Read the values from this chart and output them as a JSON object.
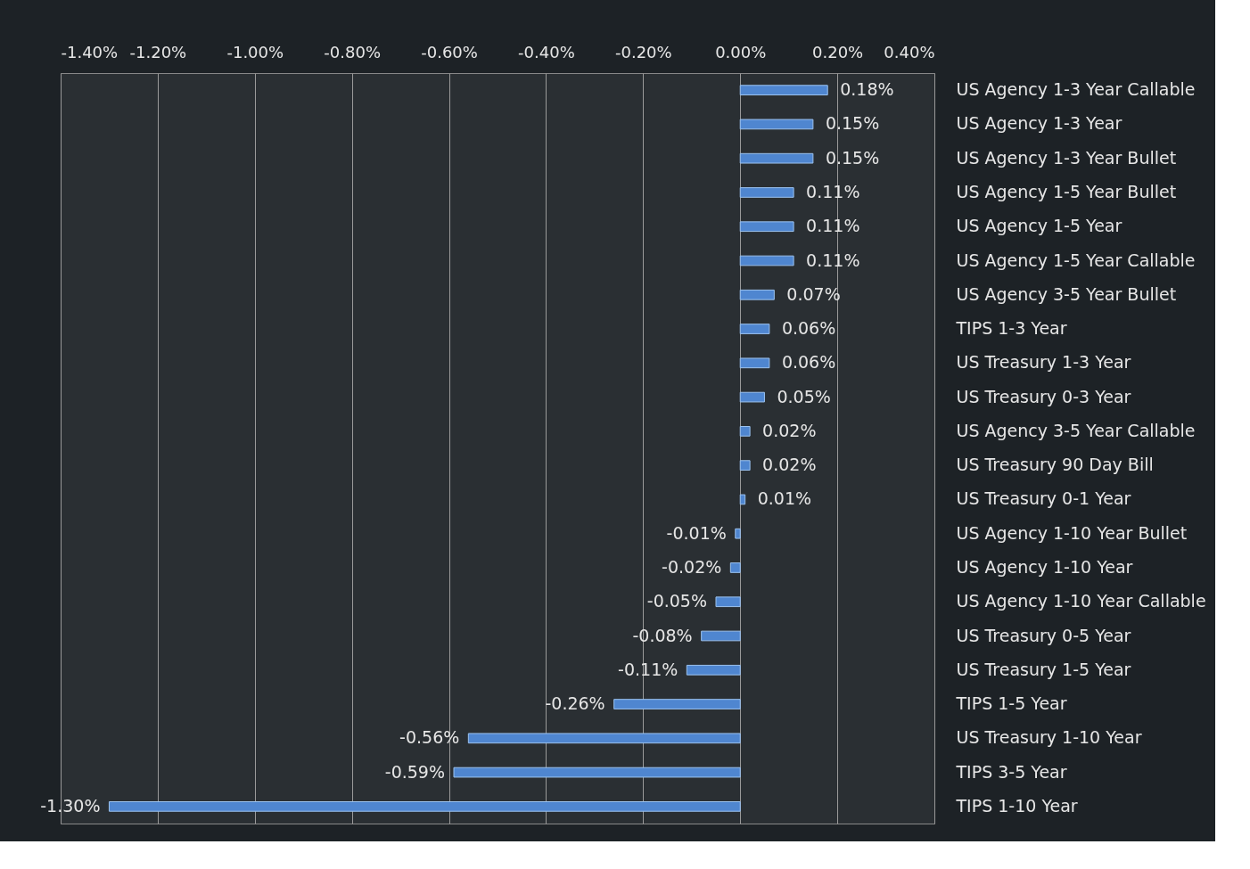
{
  "chart_data": {
    "type": "bar",
    "orientation": "horizontal",
    "categories": [
      "US Agency 1-3 Year Callable",
      "US Agency 1-3 Year",
      "US Agency 1-3 Year Bullet",
      "US Agency 1-5 Year Bullet",
      "US Agency 1-5 Year",
      "US Agency 1-5 Year Callable",
      "US Agency 3-5 Year Bullet",
      "TIPS 1-3 Year",
      "US Treasury 1-3 Year",
      "US Treasury 0-3 Year",
      "US Agency 3-5 Year Callable",
      "US Treasury 90 Day Bill",
      "US Treasury 0-1 Year",
      "US Agency 1-10 Year Bullet",
      "US Agency 1-10 Year",
      "US Agency 1-10 Year Callable",
      "US Treasury 0-5 Year",
      "US Treasury 1-5 Year",
      "TIPS 1-5 Year",
      "US Treasury 1-10 Year",
      "TIPS 3-5 Year",
      "TIPS 1-10 Year"
    ],
    "values": [
      0.18,
      0.15,
      0.15,
      0.11,
      0.11,
      0.11,
      0.07,
      0.06,
      0.06,
      0.05,
      0.02,
      0.02,
      0.01,
      -0.01,
      -0.02,
      -0.05,
      -0.08,
      -0.11,
      -0.26,
      -0.56,
      -0.59,
      -1.3
    ],
    "value_labels": [
      "0.18%",
      "0.15%",
      "0.15%",
      "0.11%",
      "0.11%",
      "0.11%",
      "0.07%",
      "0.06%",
      "0.06%",
      "0.05%",
      "0.02%",
      "0.02%",
      "0.01%",
      "-0.01%",
      "-0.02%",
      "-0.05%",
      "-0.08%",
      "-0.11%",
      "-0.26%",
      "-0.56%",
      "-0.59%",
      "-1.30%"
    ],
    "color": "#4f86d0",
    "xlim": [
      -1.4,
      0.4
    ],
    "xticks": [
      {
        "value": -1.4,
        "label": "-1.40%"
      },
      {
        "value": -1.2,
        "label": "-1.20%"
      },
      {
        "value": -1.0,
        "label": "-1.00%"
      },
      {
        "value": -0.8,
        "label": "-0.80%"
      },
      {
        "value": -0.6,
        "label": "-0.60%"
      },
      {
        "value": -0.4,
        "label": "-0.40%"
      },
      {
        "value": -0.2,
        "label": "-0.20%"
      },
      {
        "value": 0,
        "label": "0.00%"
      },
      {
        "value": 0.2,
        "label": "0.20%"
      },
      {
        "value": 0.4,
        "label": "0.40%"
      }
    ],
    "grid": "x"
  }
}
